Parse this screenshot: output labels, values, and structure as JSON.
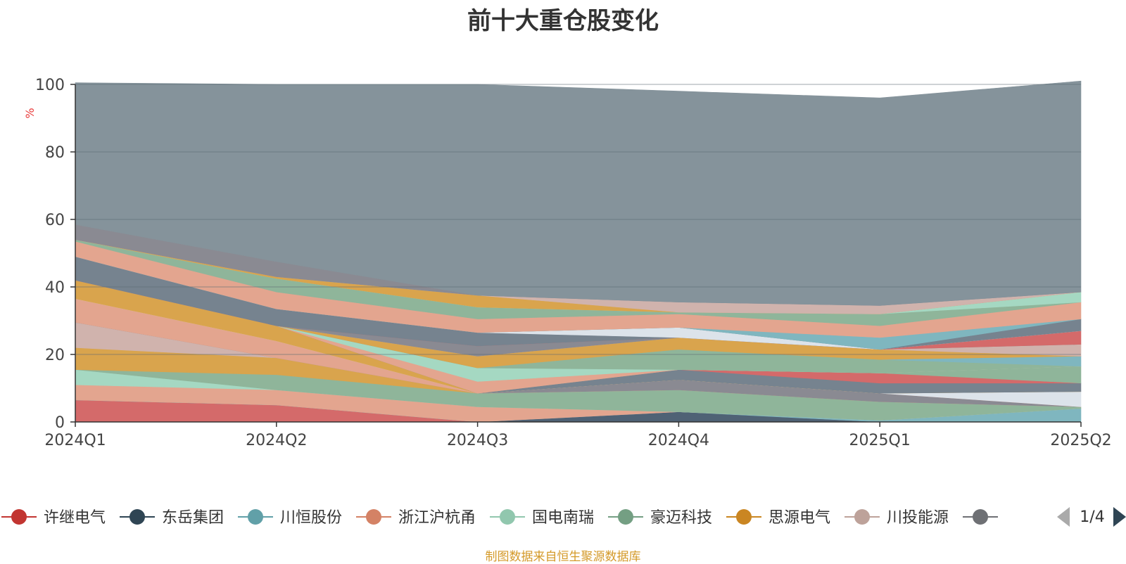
{
  "chart_data": {
    "type": "area",
    "title": "前十大重仓股变化",
    "ylabel": "%",
    "ylim": [
      0,
      100
    ],
    "yticks": [
      0,
      20,
      40,
      60,
      80,
      100
    ],
    "categories": [
      "2024Q1",
      "2024Q2",
      "2024Q3",
      "2024Q4",
      "2025Q1",
      "2025Q2"
    ],
    "grid": true,
    "legend_position": "bottom",
    "legend_page": "1/4",
    "series": [
      {
        "name": "许继电气",
        "color": "#d46a6a",
        "values": [
          6.5,
          5.0,
          0,
          0,
          0,
          0
        ]
      },
      {
        "name": "东岳集团",
        "color": "#4f6275",
        "values": [
          0,
          0,
          0,
          3.0,
          0,
          0
        ]
      },
      {
        "name": "川恒股份",
        "color": "#7fb6bf",
        "values": [
          0,
          0,
          0,
          0,
          0.5,
          4.0
        ]
      },
      {
        "name": "浙江沪杭甬",
        "color": "#e3a58f",
        "values": [
          4.5,
          4.5,
          4.5,
          0,
          0,
          0
        ]
      },
      {
        "name": "国电南瑞",
        "color": "#a5d8c2",
        "values": [
          4.5,
          0,
          0,
          0,
          0,
          0
        ]
      },
      {
        "name": "豪迈科技",
        "color": "#8fb59a",
        "values": [
          0,
          4.5,
          4.0,
          6.5,
          5.5,
          0.5
        ]
      },
      {
        "name": "思源电气",
        "color": "#d9a44d",
        "values": [
          6.5,
          5.0,
          0,
          0,
          0,
          0
        ]
      },
      {
        "name": "川投能源",
        "color": "#d0b3ad",
        "values": [
          7.5,
          0,
          0,
          0,
          0,
          0
        ]
      },
      {
        "color": "#8a8a92",
        "values": [
          0,
          0,
          0,
          3.0,
          2.5,
          0
        ]
      },
      {
        "color": "#e3a58f",
        "values": [
          7.0,
          5.0,
          0,
          0,
          0,
          0
        ]
      },
      {
        "color": "#dce3ea",
        "values": [
          0,
          0,
          0,
          0,
          0,
          4.5
        ]
      },
      {
        "color": "#d9a44d",
        "values": [
          5.5,
          4.5,
          0,
          0,
          0,
          0
        ]
      },
      {
        "color": "#76838f",
        "values": [
          0,
          0,
          0,
          3.0,
          3.0,
          2.5
        ]
      },
      {
        "color": "#d46a6a",
        "values": [
          0,
          0,
          0,
          0,
          3.0,
          0
        ]
      },
      {
        "color": "#8fb59a",
        "values": [
          0,
          0,
          0,
          0,
          0,
          5.0
        ]
      },
      {
        "color": "#e3a58f",
        "values": [
          0,
          0,
          3.5,
          0,
          0,
          0
        ]
      },
      {
        "color": "#a5d8c2",
        "values": [
          0,
          0,
          4.0,
          0,
          0,
          0
        ]
      },
      {
        "color": "#8fb59a",
        "values": [
          0,
          0,
          0,
          6.0,
          4.0,
          0
        ]
      },
      {
        "color": "#7fb6bf",
        "values": [
          0,
          0,
          0,
          0,
          0,
          3.0
        ]
      },
      {
        "color": "#d9a44d",
        "values": [
          0,
          0,
          3.5,
          3.5,
          3.0,
          0
        ]
      },
      {
        "color": "#d0b3ad",
        "values": [
          0,
          0,
          0,
          0,
          0,
          3.5
        ]
      },
      {
        "color": "#8a8a92",
        "values": [
          0,
          0,
          3.0,
          0,
          0,
          0
        ]
      },
      {
        "color": "#d46a6a",
        "values": [
          0,
          0,
          0,
          0,
          0,
          4.0
        ]
      },
      {
        "color": "#76838f",
        "values": [
          7.0,
          5.0,
          4.0,
          0,
          0,
          0
        ]
      },
      {
        "color": "#dce3ea",
        "values": [
          0,
          0,
          0,
          3.0,
          0,
          0
        ]
      },
      {
        "color": "#76838f",
        "values": [
          0,
          0,
          0,
          0,
          0,
          3.5
        ]
      },
      {
        "color": "#7fb6bf",
        "values": [
          0,
          0,
          0,
          0,
          3.5,
          0
        ]
      },
      {
        "color": "#e3a58f",
        "values": [
          4.5,
          5.0,
          4.0,
          4.0,
          3.5,
          5.0
        ]
      },
      {
        "color": "#8fb59a",
        "values": [
          0.5,
          4.0,
          3.5,
          0.5,
          3.5,
          0
        ]
      },
      {
        "color": "#a5d8c2",
        "values": [
          0,
          0,
          0,
          0,
          0,
          3.0
        ]
      },
      {
        "color": "#d9a44d",
        "values": [
          0,
          0.5,
          3.5,
          0,
          0,
          0
        ]
      },
      {
        "color": "#d0b3ad",
        "values": [
          0,
          0,
          0,
          3.0,
          2.5,
          0
        ]
      },
      {
        "color": "#8a8a92",
        "values": [
          4.5,
          4.5,
          0,
          0,
          0,
          0
        ]
      },
      {
        "color": "#85939b",
        "values": [
          42.0,
          52.5,
          62.5,
          62.5,
          61.5,
          62.5
        ]
      }
    ]
  },
  "legend_marker_colors": [
    "#c23531",
    "#2f4554",
    "#61a0a8",
    "#d48265",
    "#91c7ae",
    "#749f83",
    "#ca8622",
    "#bda29a",
    "#6e7074"
  ],
  "pager_colors": {
    "prev": "#aaaaaa",
    "next": "#2f4554"
  },
  "source_note": "制图数据来自恒生聚源数据库"
}
